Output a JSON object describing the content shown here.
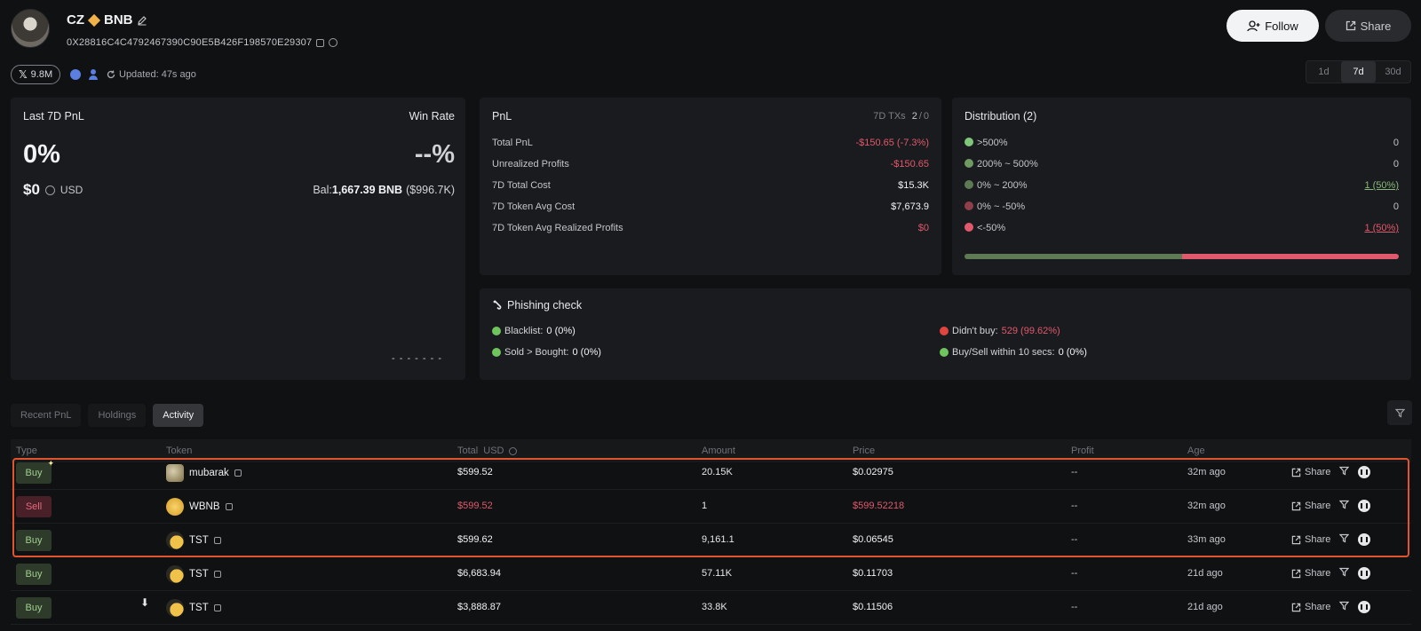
{
  "profile": {
    "name": "CZ",
    "chain": "BNB",
    "address": "0X28816C4C4792467390C90E5B426F198570E29307",
    "followers": "9.8M",
    "updated": "Updated: 47s ago"
  },
  "buttons": {
    "follow": "Follow",
    "share": "Share"
  },
  "periods": [
    {
      "label": "1d",
      "active": false
    },
    {
      "label": "7d",
      "active": true
    },
    {
      "label": "30d",
      "active": false
    }
  ],
  "summary": {
    "pnl_label": "Last 7D PnL",
    "pnl_pct": "0%",
    "winrate_label": "Win Rate",
    "winrate_value": "--%",
    "usd_value": "$0",
    "usd_unit": "USD",
    "bal_label": "Bal:",
    "bal_value": "1,667.39 BNB",
    "bal_usd": "($996.7K)",
    "placeholder_dashes": "- - - - - - -"
  },
  "pnl": {
    "title": "PnL",
    "txs_label": "7D TXs",
    "txs_value": "2",
    "txs_sep": "/",
    "txs_value2": "0",
    "rows": [
      {
        "key": "Total PnL",
        "value": "-$150.65 (-7.3%)",
        "tone": "red"
      },
      {
        "key": "Unrealized Profits",
        "value": "-$150.65",
        "tone": "red"
      },
      {
        "key": "7D Total Cost",
        "value": "$15.3K",
        "tone": "white"
      },
      {
        "key": "7D Token Avg Cost",
        "value": "$7,673.9",
        "tone": "white"
      },
      {
        "key": "7D Token Avg Realized Profits",
        "value": "$0",
        "tone": "red"
      }
    ]
  },
  "distribution": {
    "title": "Distribution (2)",
    "rows": [
      {
        "label": ">500%",
        "value": "0",
        "color": "#7fc67a",
        "tone": "plain"
      },
      {
        "label": "200% ~ 500%",
        "value": "0",
        "color": "#6f9a62",
        "tone": "plain"
      },
      {
        "label": "0% ~ 200%",
        "value": "1 (50%)",
        "color": "#5d7a55",
        "tone": "green"
      },
      {
        "label": "0% ~ -50%",
        "value": "0",
        "color": "#8e3f4b",
        "tone": "plain"
      },
      {
        "label": "<-50%",
        "value": "1 (50%)",
        "color": "#e0596c",
        "tone": "red"
      }
    ],
    "bar": [
      {
        "fraction": 0.5,
        "color": "#5d7a55"
      },
      {
        "fraction": 0.5,
        "color": "#e0596c"
      }
    ]
  },
  "phishing": {
    "title": "Phishing check",
    "items": [
      {
        "label": "Blacklist:",
        "value": "0 (0%)",
        "dot": "#6fc45e",
        "tone": "white"
      },
      {
        "label": "Didn't buy:",
        "value": "529 (99.62%)",
        "dot": "#e0453f",
        "tone": "red"
      },
      {
        "label": "Sold > Bought:",
        "value": "0 (0%)",
        "dot": "#6fc45e",
        "tone": "white"
      },
      {
        "label": "Buy/Sell within 10 secs:",
        "value": "0 (0%)",
        "dot": "#6fc45e",
        "tone": "white"
      }
    ]
  },
  "tabs": [
    {
      "label": "Recent PnL",
      "active": false
    },
    {
      "label": "Holdings",
      "active": false
    },
    {
      "label": "Activity",
      "active": true
    }
  ],
  "table": {
    "headers": [
      "Type",
      "Token",
      "Total",
      "USD",
      "Amount",
      "Price",
      "Profit",
      "Age"
    ],
    "share_label": "Share",
    "rows": [
      {
        "type": "Buy",
        "token": "mubarak",
        "icon": "mubarak-token-icon",
        "total": "$599.52",
        "amount": "20.15K",
        "price": "$0.02975",
        "profit": "--",
        "age": "32m ago",
        "tone": "white",
        "sparkle": true
      },
      {
        "type": "Sell",
        "token": "WBNB",
        "icon": "wbnb-token-icon",
        "total": "$599.52",
        "amount": "1",
        "price": "$599.52218",
        "profit": "--",
        "age": "32m ago",
        "tone": "red",
        "sparkle": false
      },
      {
        "type": "Buy",
        "token": "TST",
        "icon": "tst-token-icon",
        "total": "$599.62",
        "amount": "9,161.1",
        "price": "$0.06545",
        "profit": "--",
        "age": "33m ago",
        "tone": "white",
        "sparkle": false
      },
      {
        "type": "Buy",
        "token": "TST",
        "icon": "tst-token-icon",
        "total": "$6,683.94",
        "amount": "57.11K",
        "price": "$0.11703",
        "profit": "--",
        "age": "21d ago",
        "tone": "white",
        "sparkle": false
      },
      {
        "type": "Buy",
        "token": "TST",
        "icon": "tst-token-icon",
        "total": "$3,888.87",
        "amount": "33.8K",
        "price": "$0.11506",
        "profit": "--",
        "age": "21d ago",
        "tone": "white",
        "sparkle": false
      }
    ]
  }
}
